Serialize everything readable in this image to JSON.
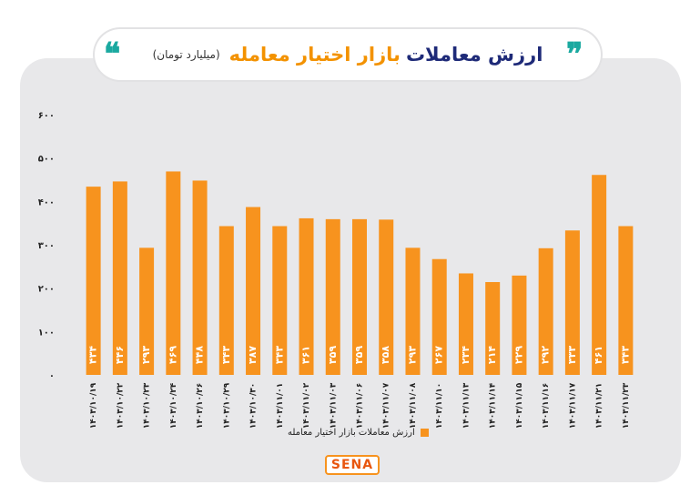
{
  "header": {
    "title_main": "ارزش معاملات",
    "title_accent": "بازار اختیار معامله",
    "subtitle": "(میلیارد تومان)",
    "quote_left": "❝",
    "quote_right": "❞"
  },
  "logo": {
    "text": "SENA"
  },
  "colors": {
    "bar": "#f7931e",
    "label": "#ffffff",
    "axis": "#222222",
    "accent": "#f39200",
    "title": "#1e2a78"
  },
  "chart_data": {
    "type": "bar",
    "ylim": [
      0,
      600
    ],
    "yticks": [
      "۰",
      "۱۰۰",
      "۲۰۰",
      "۳۰۰",
      "۴۰۰",
      "۵۰۰",
      "۶۰۰"
    ],
    "categories": [
      "۱۴۰۳/۱۰/۱۹",
      "۱۴۰۳/۱۰/۲۲",
      "۱۴۰۳/۱۰/۲۳",
      "۱۴۰۳/۱۰/۲۴",
      "۱۴۰۳/۱۰/۲۶",
      "۱۴۰۳/۱۰/۲۹",
      "۱۴۰۳/۱۰/۳۰",
      "۱۴۰۳/۱۱/۰۱",
      "۱۴۰۳/۱۱/۰۲",
      "۱۴۰۳/۱۱/۰۳",
      "۱۴۰۳/۱۱/۰۶",
      "۱۴۰۳/۱۱/۰۷",
      "۱۴۰۳/۱۱/۰۸",
      "۱۴۰۳/۱۱/۱۰",
      "۱۴۰۳/۱۱/۱۳",
      "۱۴۰۳/۱۱/۱۴",
      "۱۴۰۳/۱۱/۱۵",
      "۱۴۰۳/۱۱/۱۶",
      "۱۴۰۳/۱۱/۱۷",
      "۱۴۰۳/۱۱/۲۱",
      "۱۴۰۳/۱۱/۲۳"
    ],
    "values": [
      434,
      446,
      293,
      469,
      448,
      343,
      387,
      343,
      361,
      359,
      359,
      358,
      293,
      267,
      234,
      214,
      229,
      292,
      333,
      461,
      343
    ],
    "value_labels": [
      "۴۳۴",
      "۴۴۶",
      "۲۹۳",
      "۴۶۹",
      "۴۴۸",
      "۳۴۳",
      "۳۸۷",
      "۳۴۳",
      "۳۶۱",
      "۳۵۹",
      "۳۵۹",
      "۳۵۸",
      "۲۹۳",
      "۲۶۷",
      "۲۳۴",
      "۲۱۴",
      "۲۲۹",
      "۲۹۲",
      "۳۳۳",
      "۴۶۱",
      "۳۴۳"
    ],
    "legend": {
      "label": "ارزش معاملات بازار اختیار معامله",
      "position": "bottom"
    },
    "grid": false
  }
}
